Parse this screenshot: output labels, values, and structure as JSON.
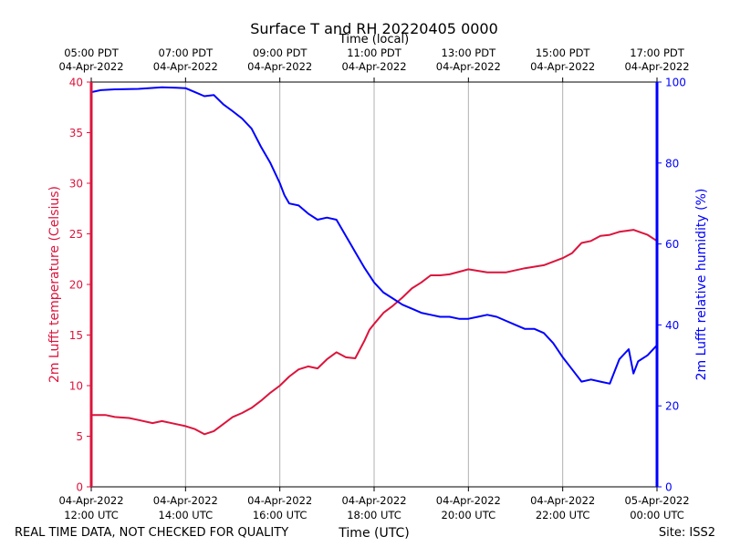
{
  "colors": {
    "temperature": "#dc143c",
    "humidity": "#0000ff",
    "grid": "#b0b0b0",
    "axis": "#000000"
  },
  "footer": {
    "disclaimer": "REAL TIME DATA, NOT CHECKED FOR QUALITY",
    "site": "Site: ISS2"
  },
  "chart_data": {
    "type": "line",
    "title": "Surface T and RH 20220405 0000",
    "xlabel": "Time (UTC)",
    "xlabel_top": "Time (local)",
    "ylabel_left": "2m Lufft temperature (Celsius)",
    "ylabel_right": "2m Lufft relative humidity (%)",
    "xlim_hours": [
      0,
      12
    ],
    "ylim_left": [
      0,
      40
    ],
    "ylim_right": [
      0,
      100
    ],
    "yticks_left": [
      0,
      5,
      10,
      15,
      20,
      25,
      30,
      35,
      40
    ],
    "yticks_right": [
      0,
      20,
      40,
      60,
      80,
      100
    ],
    "x_ticks_bottom": [
      {
        "hour": 0,
        "date": "04-Apr-2022",
        "time": "12:00 UTC"
      },
      {
        "hour": 2,
        "date": "04-Apr-2022",
        "time": "14:00 UTC"
      },
      {
        "hour": 4,
        "date": "04-Apr-2022",
        "time": "16:00 UTC"
      },
      {
        "hour": 6,
        "date": "04-Apr-2022",
        "time": "18:00 UTC"
      },
      {
        "hour": 8,
        "date": "04-Apr-2022",
        "time": "20:00 UTC"
      },
      {
        "hour": 10,
        "date": "04-Apr-2022",
        "time": "22:00 UTC"
      },
      {
        "hour": 12,
        "date": "05-Apr-2022",
        "time": "00:00 UTC"
      }
    ],
    "x_ticks_top": [
      {
        "hour": 0,
        "time": "05:00 PDT",
        "date": "04-Apr-2022"
      },
      {
        "hour": 2,
        "time": "07:00 PDT",
        "date": "04-Apr-2022"
      },
      {
        "hour": 4,
        "time": "09:00 PDT",
        "date": "04-Apr-2022"
      },
      {
        "hour": 6,
        "time": "11:00 PDT",
        "date": "04-Apr-2022"
      },
      {
        "hour": 8,
        "time": "13:00 PDT",
        "date": "04-Apr-2022"
      },
      {
        "hour": 10,
        "time": "15:00 PDT",
        "date": "04-Apr-2022"
      },
      {
        "hour": 12,
        "time": "17:00 PDT",
        "date": "04-Apr-2022"
      }
    ],
    "series": [
      {
        "name": "2m Lufft temperature (Celsius)",
        "axis": "left",
        "x": [
          0,
          0.3,
          0.5,
          0.8,
          1.0,
          1.3,
          1.5,
          1.8,
          2.0,
          2.2,
          2.4,
          2.6,
          2.8,
          3.0,
          3.2,
          3.4,
          3.6,
          3.8,
          4.0,
          4.2,
          4.4,
          4.6,
          4.8,
          5.0,
          5.2,
          5.4,
          5.6,
          5.8,
          5.9,
          6.0,
          6.2,
          6.4,
          6.6,
          6.8,
          7.0,
          7.2,
          7.4,
          7.6,
          8.0,
          8.4,
          8.8,
          9.2,
          9.6,
          10.0,
          10.2,
          10.4,
          10.6,
          10.8,
          11.0,
          11.2,
          11.5,
          11.8,
          12.0
        ],
        "y": [
          7.1,
          7.1,
          6.9,
          6.8,
          6.6,
          6.3,
          6.5,
          6.2,
          6.0,
          5.7,
          5.2,
          5.5,
          6.2,
          6.9,
          7.3,
          7.8,
          8.5,
          9.3,
          10.0,
          10.9,
          11.6,
          11.9,
          11.7,
          12.6,
          13.3,
          12.8,
          12.7,
          14.5,
          15.5,
          16.1,
          17.2,
          17.9,
          18.7,
          19.6,
          20.2,
          20.9,
          20.9,
          21.0,
          21.5,
          21.2,
          21.2,
          21.6,
          21.9,
          22.6,
          23.1,
          24.1,
          24.3,
          24.8,
          24.9,
          25.2,
          25.4,
          24.9,
          24.3
        ]
      },
      {
        "name": "2m Lufft relative humidity (%)",
        "axis": "right",
        "x": [
          0,
          0.2,
          0.5,
          1.0,
          1.5,
          1.8,
          2.0,
          2.2,
          2.4,
          2.6,
          2.8,
          3.0,
          3.2,
          3.4,
          3.6,
          3.8,
          4.0,
          4.1,
          4.2,
          4.4,
          4.6,
          4.8,
          5.0,
          5.2,
          5.4,
          5.6,
          5.8,
          6.0,
          6.2,
          6.4,
          6.6,
          6.8,
          7.0,
          7.2,
          7.4,
          7.6,
          7.8,
          8.0,
          8.2,
          8.4,
          8.6,
          8.8,
          9.0,
          9.2,
          9.4,
          9.6,
          9.8,
          10.0,
          10.2,
          10.4,
          10.6,
          10.8,
          11.0,
          11.2,
          11.4,
          11.5,
          11.6,
          11.8,
          12.0
        ],
        "y": [
          97.5,
          98.0,
          98.2,
          98.3,
          98.7,
          98.6,
          98.5,
          97.5,
          96.5,
          96.8,
          94.5,
          92.8,
          91.0,
          88.5,
          84.0,
          80.0,
          75.0,
          72.0,
          70.0,
          69.5,
          67.5,
          66.0,
          66.5,
          66.0,
          62.0,
          58.0,
          54.0,
          50.5,
          48.0,
          46.5,
          45.0,
          44.0,
          43.0,
          42.5,
          42.0,
          42.0,
          41.5,
          41.5,
          42.0,
          42.5,
          42.0,
          41.0,
          40.0,
          39.0,
          39.0,
          38.0,
          35.5,
          32.0,
          29.0,
          26.0,
          26.5,
          26.0,
          25.5,
          31.5,
          34.0,
          28.0,
          31.0,
          32.5,
          35.0
        ]
      }
    ]
  }
}
